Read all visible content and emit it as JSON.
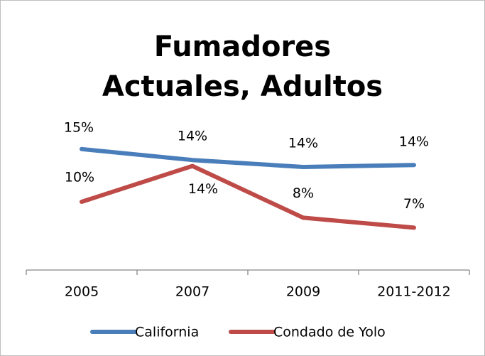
{
  "chart_data": {
    "type": "line",
    "title": "Fumadores Actuales, Adultos",
    "categories": [
      "2005",
      "2007",
      "2009",
      "2011-2012"
    ],
    "series": [
      {
        "name": "California",
        "color": "#4a7ebb",
        "values": [
          15.3,
          14.2,
          13.5,
          13.7
        ],
        "value_labels": [
          "15%",
          "14%",
          "14%",
          "14%"
        ]
      },
      {
        "name": "Condado de Yolo",
        "color": "#be4b48",
        "values": [
          10.0,
          13.6,
          8.4,
          7.4
        ],
        "value_labels": [
          "10%",
          "14%",
          "8%",
          "7%"
        ]
      }
    ],
    "ylim": [
      3,
      18
    ]
  }
}
